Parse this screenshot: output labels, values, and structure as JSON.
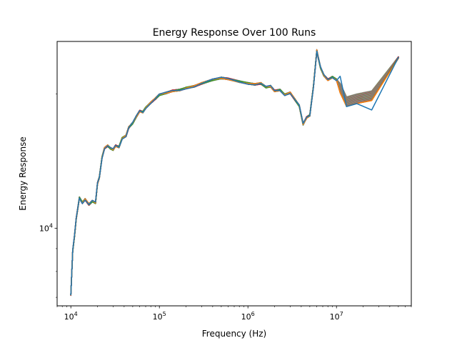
{
  "chart_data": {
    "type": "line",
    "title": "Energy Response Over 100 Runs",
    "xlabel": "Frequency (Hz)",
    "ylabel": "Energy Response",
    "xscale": "log",
    "yscale": "log",
    "xlim": [
      7000,
      70000000
    ],
    "ylim": [
      6700,
      26200
    ],
    "grid": false,
    "legend": "none",
    "x_ticks": [
      {
        "value": 10000,
        "base": "10",
        "exp": "4"
      },
      {
        "value": 100000,
        "base": "10",
        "exp": "5"
      },
      {
        "value": 1000000,
        "base": "10",
        "exp": "6"
      },
      {
        "value": 10000000,
        "base": "10",
        "exp": "7"
      }
    ],
    "y_ticks": [
      {
        "value": 10000,
        "base": "10",
        "exp": "4"
      }
    ],
    "series_colors": [
      "#1f77b4",
      "#ff7f0e",
      "#2ca02c",
      "#d62728",
      "#9467bd",
      "#8c564b",
      "#e377c2",
      "#7f7f7f",
      "#bcbd22",
      "#17becf"
    ],
    "run_count": 100,
    "base_series": {
      "x": [
        10000,
        10500,
        11000,
        11500,
        12500,
        13500,
        14500,
        16000,
        17500,
        19000,
        20000,
        21000,
        22500,
        24000,
        26000,
        28000,
        30000,
        32000,
        35000,
        38000,
        42000,
        45000,
        50000,
        55000,
        60000,
        65000,
        70000,
        80000,
        90000,
        100000,
        120000,
        140000,
        170000,
        200000,
        250000,
        300000,
        400000,
        500000,
        600000,
        800000,
        1000000,
        1200000,
        1400000,
        1600000,
        1800000,
        2000000,
        2300000,
        2600000,
        3000000,
        3400000,
        3800000,
        4200000,
        4600000,
        5000000,
        5500000,
        6000000,
        6200000,
        6600000,
        7200000,
        8000000,
        9000000,
        10000000,
        11000000,
        13000000,
        17000000,
        25000000,
        50000000
      ],
      "y": [
        7100,
        8900,
        9600,
        10500,
        11700,
        11400,
        11600,
        11300,
        11500,
        11400,
        12600,
        13000,
        14400,
        15100,
        15300,
        15100,
        15000,
        15300,
        15200,
        15900,
        16100,
        16800,
        17200,
        17800,
        18300,
        18200,
        18600,
        19100,
        19500,
        19900,
        20100,
        20300,
        20400,
        20600,
        20800,
        21100,
        21500,
        21700,
        21600,
        21300,
        21100,
        21000,
        21100,
        20700,
        20800,
        20300,
        20400,
        19900,
        20100,
        19400,
        18800,
        17100,
        17700,
        17900,
        20800,
        25000,
        24200,
        22900,
        22000,
        21500,
        21800,
        21500,
        20600,
        19200,
        19500,
        19800,
        24100
      ]
    }
  }
}
